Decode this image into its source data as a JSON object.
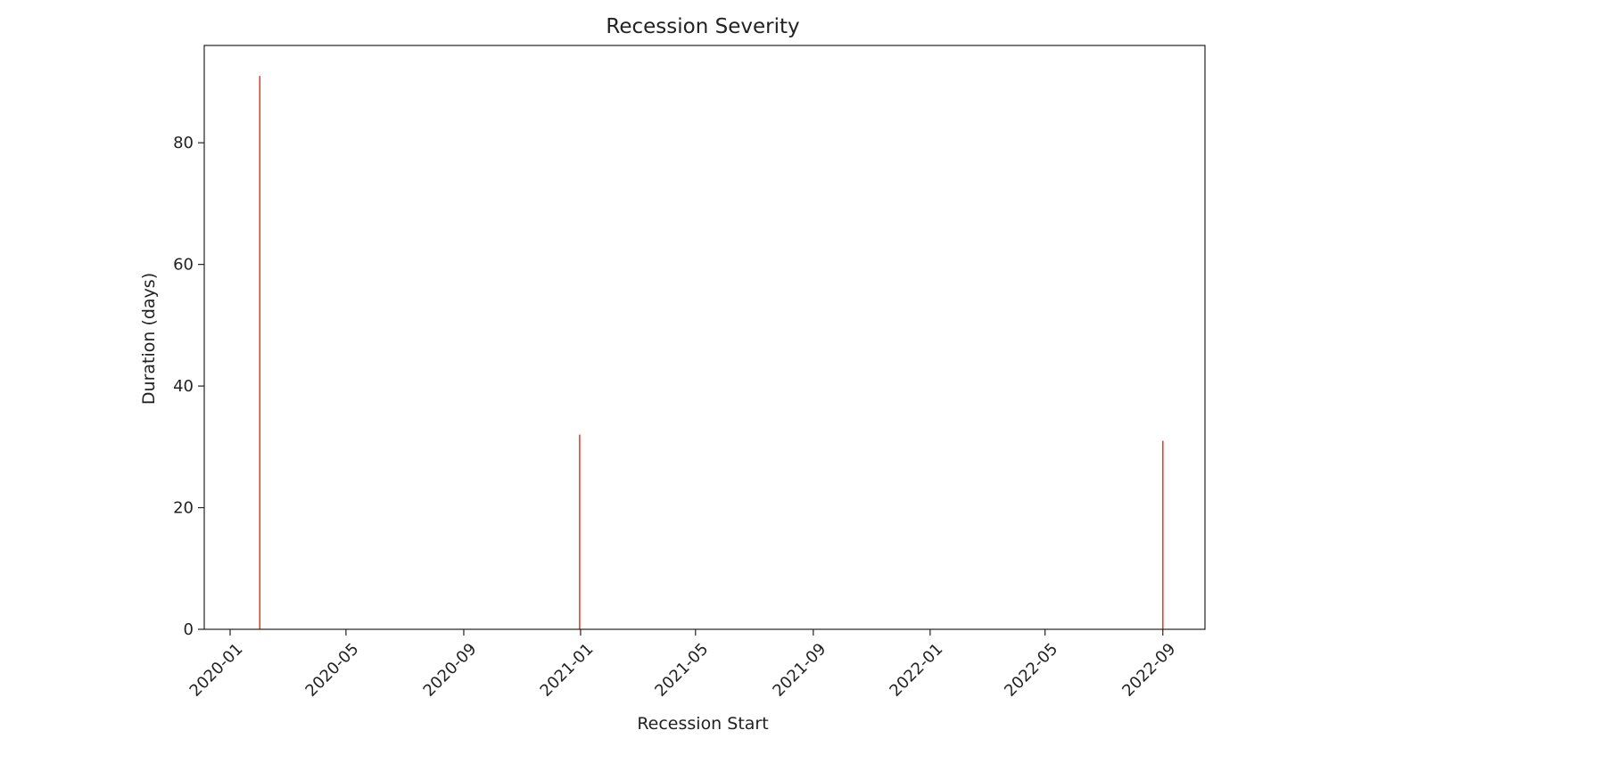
{
  "chart_data": {
    "type": "bar",
    "title": "Recession Severity",
    "xlabel": "Recession Start",
    "ylabel": "Duration (days)",
    "x_axis_type": "date",
    "x_ticks": [
      "2020-01",
      "2020-05",
      "2020-09",
      "2021-01",
      "2021-05",
      "2021-09",
      "2022-01",
      "2022-05",
      "2022-09"
    ],
    "y_ticks": [
      0,
      20,
      40,
      60,
      80
    ],
    "xlim": [
      "2019-12-05",
      "2022-10-15"
    ],
    "ylim": [
      0,
      96
    ],
    "bar_color": "#e8412b",
    "grid": false,
    "legend": "none",
    "series": [
      {
        "x": [
          "2020-02-01",
          "2020-12-31",
          "2022-09-01"
        ],
        "values": [
          91,
          32,
          31
        ]
      }
    ]
  }
}
